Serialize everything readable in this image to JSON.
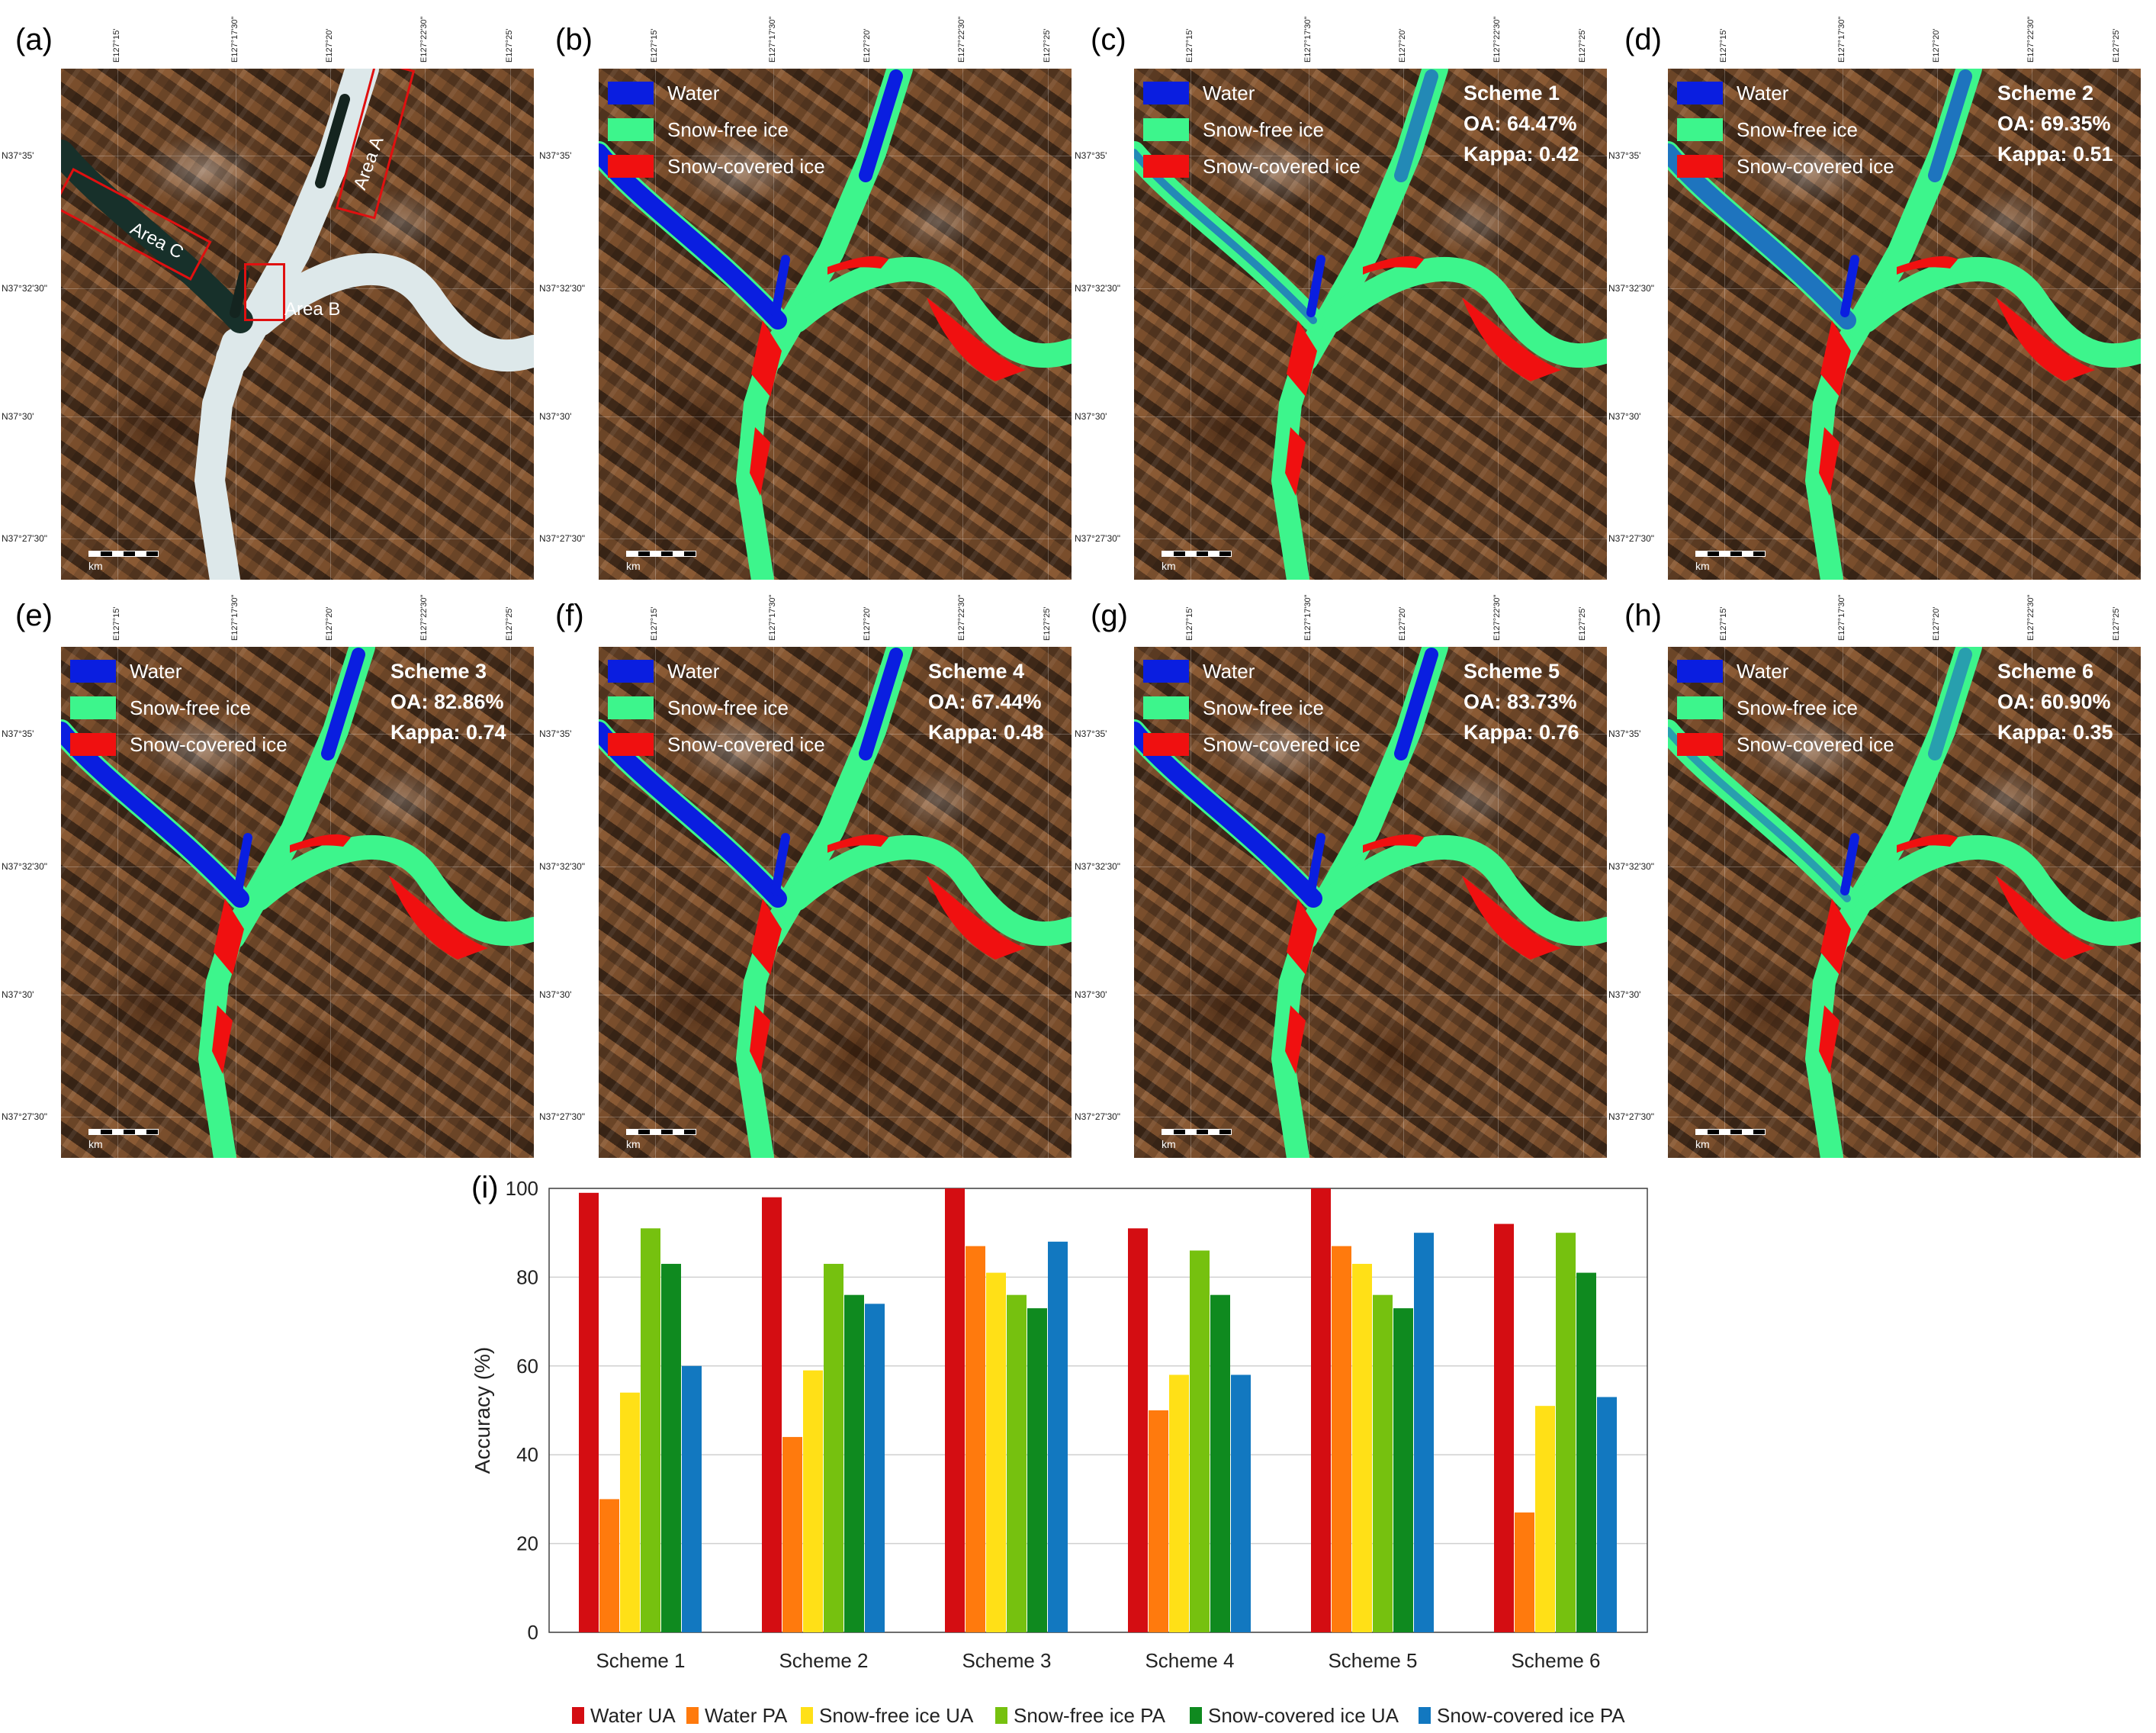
{
  "panel_letters": [
    "(a)",
    "(b)",
    "(c)",
    "(d)",
    "(e)",
    "(f)",
    "(g)",
    "(h)",
    "(i)"
  ],
  "map_axes": {
    "x_ticks": [
      "E127°15'",
      "E127°17'30\"",
      "E127°20'",
      "E127°22'30\"",
      "E127°25'"
    ],
    "y_ticks": [
      "N37°35'",
      "N37°32'30\"",
      "N37°30'",
      "N37°27'30\""
    ]
  },
  "colors": {
    "water": "#0a1ee0",
    "snow_free_ice": "#3df58c",
    "snow_covered_ice": "#f01010",
    "frozen_river": "#dde8ea",
    "area_box": "#e01010"
  },
  "legend": [
    "Water",
    "Snow-free ice",
    "Snow-covered ice"
  ],
  "scale_unit": "km",
  "panel_a": {
    "areas": [
      "Area A",
      "Area B",
      "Area C"
    ]
  },
  "schemes": [
    {
      "name": "Scheme 1",
      "oa": "OA: 64.47%",
      "kappa": "Kappa: 0.42"
    },
    {
      "name": "Scheme 2",
      "oa": "OA: 69.35%",
      "kappa": "Kappa: 0.51"
    },
    {
      "name": "Scheme 3",
      "oa": "OA: 82.86%",
      "kappa": "Kappa: 0.74"
    },
    {
      "name": "Scheme 4",
      "oa": "OA: 67.44%",
      "kappa": "Kappa: 0.48"
    },
    {
      "name": "Scheme 5",
      "oa": "OA: 83.73%",
      "kappa": "Kappa: 0.76"
    },
    {
      "name": "Scheme 6",
      "oa": "OA: 60.90%",
      "kappa": "Kappa: 0.35"
    }
  ],
  "chart_data": {
    "type": "bar",
    "categories": [
      "Scheme 1",
      "Scheme 2",
      "Scheme 3",
      "Scheme 4",
      "Scheme 5",
      "Scheme 6"
    ],
    "series": [
      {
        "name": "Water UA",
        "color": "#d40d12",
        "values": [
          99,
          98,
          100,
          91,
          100,
          92
        ]
      },
      {
        "name": "Water PA",
        "color": "#ff7a0d",
        "values": [
          30,
          44,
          87,
          50,
          87,
          27
        ]
      },
      {
        "name": "Snow-free ice UA",
        "color": "#ffe017",
        "values": [
          54,
          59,
          81,
          58,
          83,
          51
        ]
      },
      {
        "name": "Snow-free ice PA",
        "color": "#76c10f",
        "values": [
          91,
          83,
          76,
          86,
          76,
          90
        ]
      },
      {
        "name": "Snow-covered ice UA",
        "color": "#0f8a1f",
        "values": [
          83,
          76,
          73,
          76,
          73,
          81
        ]
      },
      {
        "name": "Snow-covered ice PA",
        "color": "#1278c0",
        "values": [
          60,
          74,
          88,
          58,
          90,
          53
        ]
      }
    ],
    "title": "",
    "xlabel": "",
    "ylabel": "Accuracy (%)",
    "ylim": [
      0,
      100
    ],
    "yticks": [
      0,
      20,
      40,
      60,
      80,
      100
    ],
    "grid": "horizontal",
    "legend_position": "bottom"
  }
}
